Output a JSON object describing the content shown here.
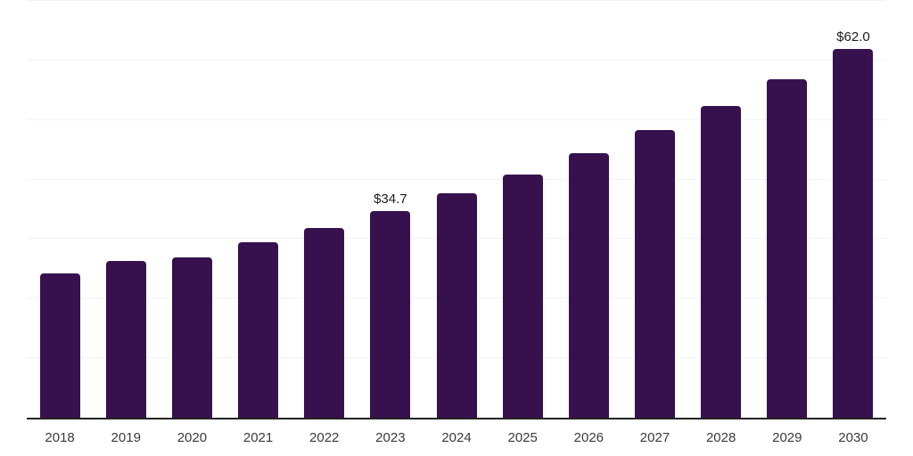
{
  "chart_data": {
    "type": "bar",
    "title": "",
    "xlabel": "",
    "ylabel": "",
    "categories": [
      "2018",
      "2019",
      "2020",
      "2021",
      "2022",
      "2023",
      "2024",
      "2025",
      "2026",
      "2027",
      "2028",
      "2029",
      "2030"
    ],
    "values": [
      24.3,
      26.3,
      27.0,
      29.4,
      31.9,
      34.7,
      37.7,
      40.9,
      44.5,
      48.3,
      52.3,
      56.9,
      62.0
    ],
    "data_labels": [
      "",
      "",
      "",
      "",
      "",
      "$34.7",
      "",
      "",
      "",
      "",
      "",
      "",
      "$62.0"
    ],
    "ylim": [
      0,
      70
    ],
    "gridline_values": [
      10,
      20,
      30,
      40,
      50,
      60,
      70
    ],
    "grid_on": true,
    "legend": "none",
    "colors": {
      "bar": "#36114d",
      "gridline": "#f2f2f2",
      "axis_line": "#222222",
      "tick_label": "#3a3a3a",
      "data_label": "#1c1c1c",
      "background": "#ffffff"
    }
  }
}
